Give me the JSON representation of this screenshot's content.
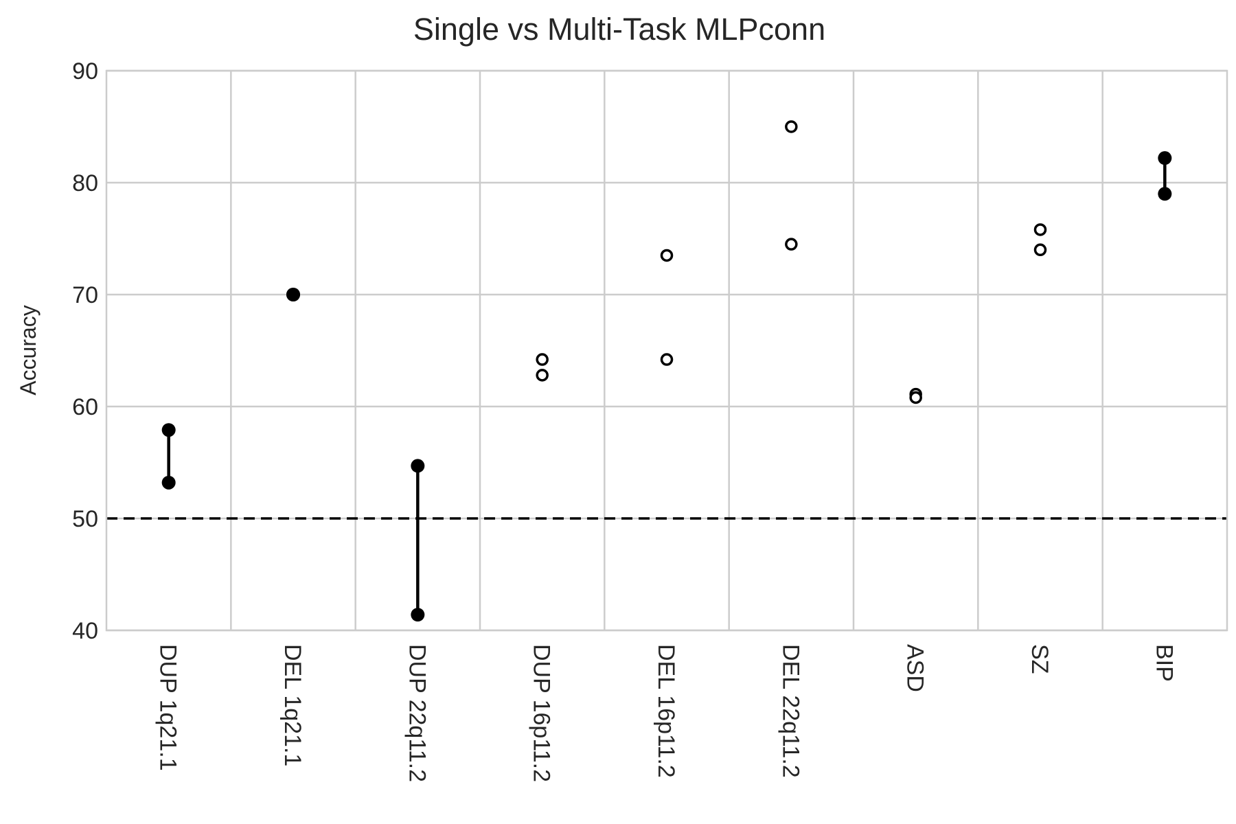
{
  "chart_data": {
    "type": "scatter",
    "title": "Single vs Multi-Task MLPconn",
    "xlabel": "",
    "ylabel": "Accuracy",
    "ylim": [
      40,
      90
    ],
    "yticks": [
      40,
      50,
      60,
      70,
      80,
      90
    ],
    "grid": true,
    "categories": [
      "DUP 1q21.1",
      "DEL 1q21.1",
      "DUP 22q11.2",
      "DUP 16p11.2",
      "DEL 16p11.2",
      "DEL 22q11.2",
      "ASD",
      "SZ",
      "BIP"
    ],
    "points": [
      {
        "values": [
          57.9,
          53.2
        ],
        "filled": true
      },
      {
        "values": [
          70.0,
          70.0
        ],
        "filled": true
      },
      {
        "values": [
          54.7,
          41.4
        ],
        "filled": true
      },
      {
        "values": [
          64.2,
          62.8
        ],
        "filled": false
      },
      {
        "values": [
          73.5,
          64.2
        ],
        "filled": false
      },
      {
        "values": [
          85.0,
          74.5
        ],
        "filled": false
      },
      {
        "values": [
          61.1,
          60.8
        ],
        "filled": false
      },
      {
        "values": [
          75.8,
          74.0
        ],
        "filled": false
      },
      {
        "values": [
          82.2,
          79.0
        ],
        "filled": true
      }
    ],
    "reference_line": {
      "y": 50,
      "style": "dashed",
      "color": "#000000"
    },
    "colors": {
      "marker": "#000000",
      "grid": "#cccccc",
      "text": "#262626"
    }
  }
}
